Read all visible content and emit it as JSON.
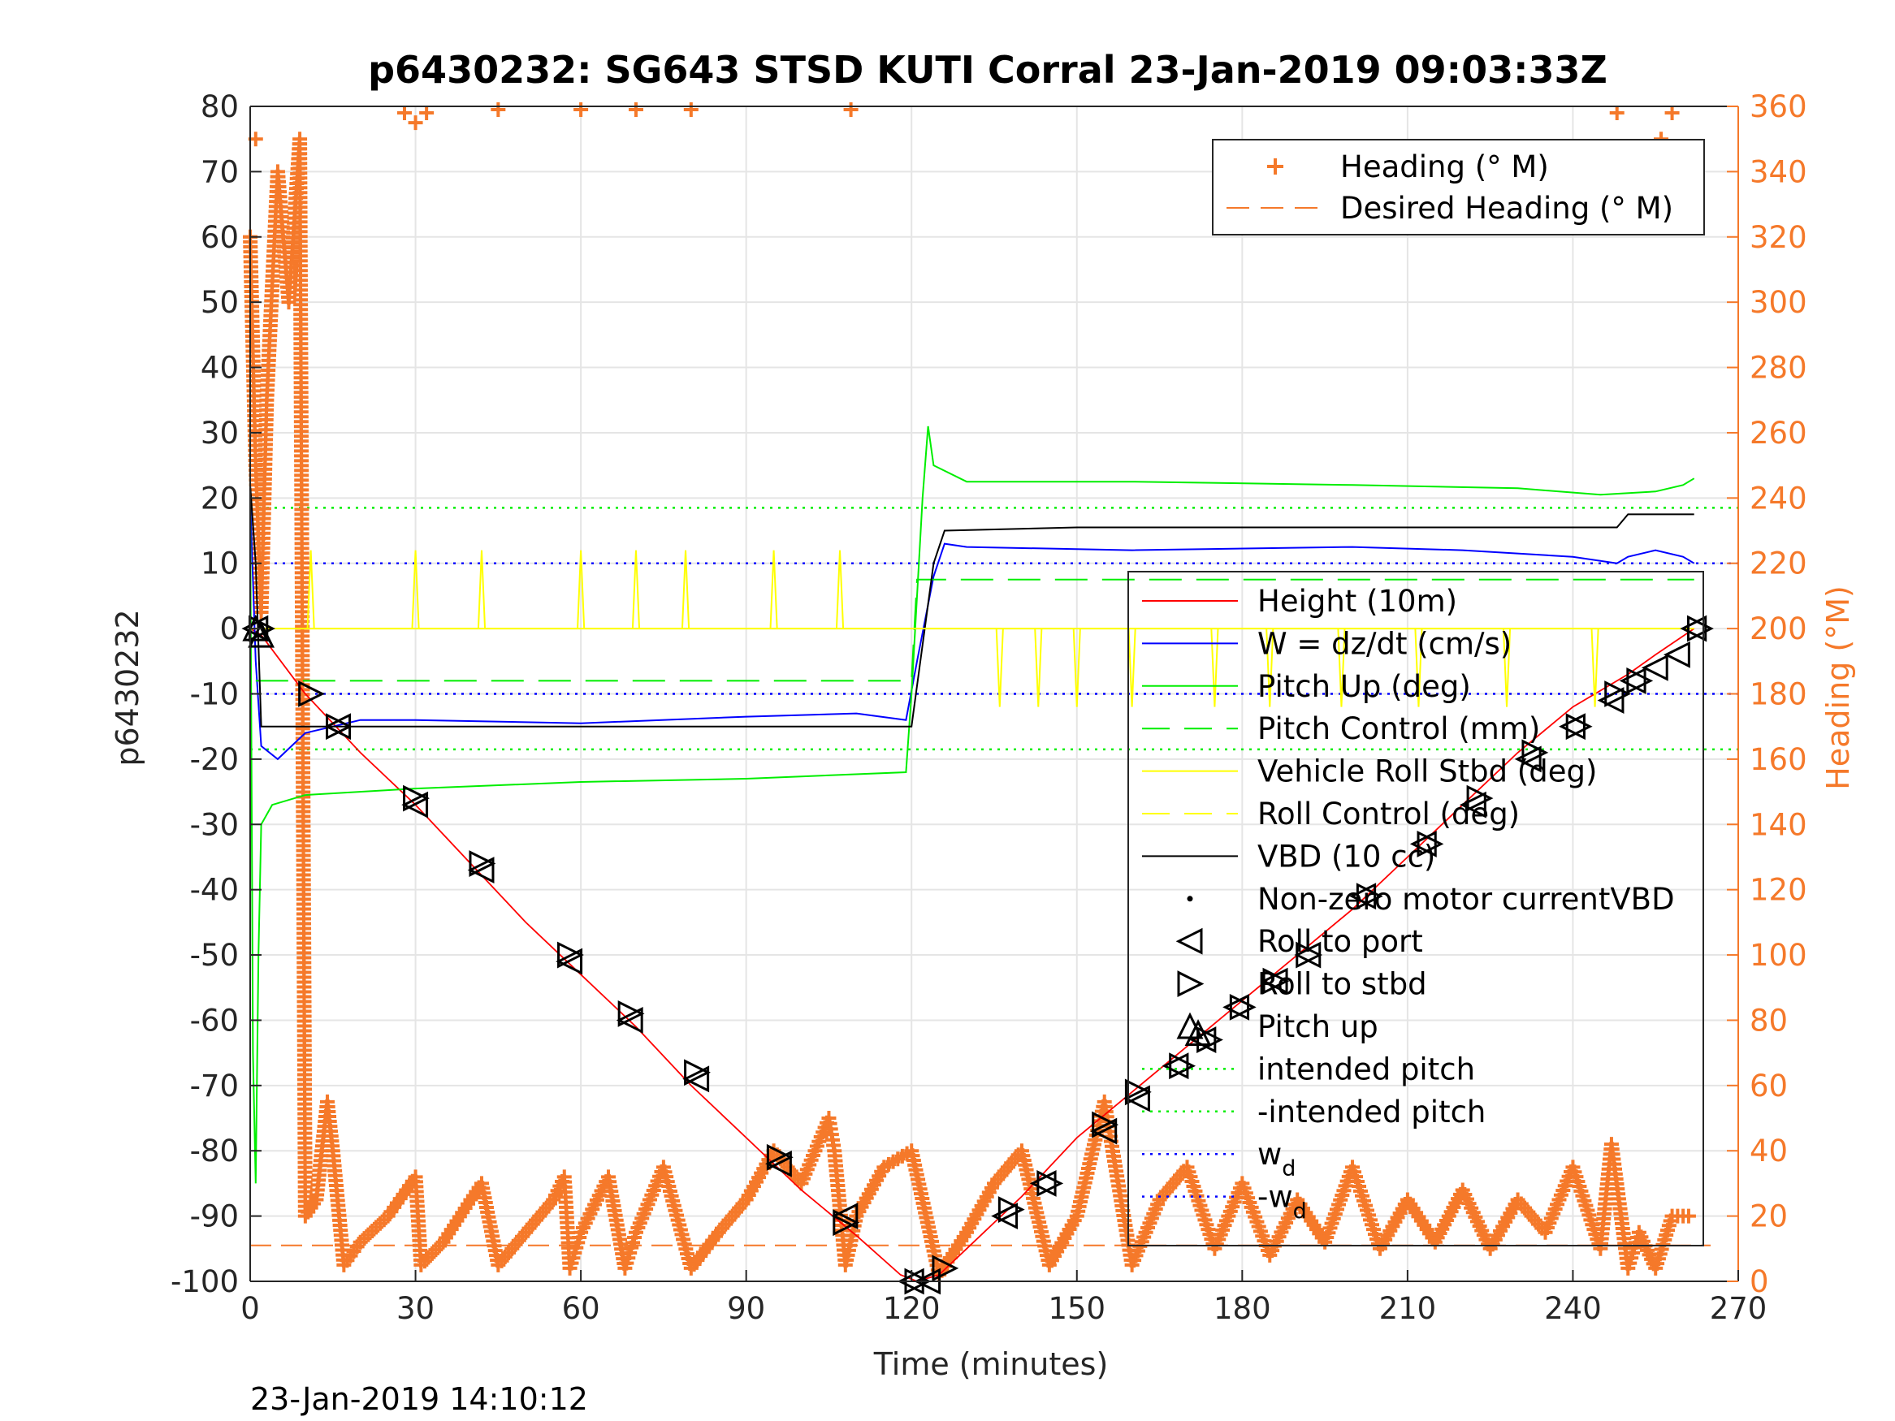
{
  "colors": {
    "height": "#ff0000",
    "w": "#0000ff",
    "pitch": "#00ee00",
    "roll": "#ffff00",
    "vbd": "#000000",
    "heading": "#f5792a",
    "grid": "#e5e5e5",
    "axis": "#262626"
  },
  "chart_data": {
    "type": "line",
    "title": "p6430232: SG643 STSD KUTI Corral 23-Jan-2019 09:03:33Z",
    "xlabel": "Time (minutes)",
    "ylabel_left": "p6430232",
    "ylabel_right": "Heading (°M)",
    "footer": "23-Jan-2019 14:10:12",
    "xlim": [
      0,
      270
    ],
    "ylim_left": [
      -100,
      80
    ],
    "ylim_right": [
      0,
      360
    ],
    "xticks": [
      0,
      30,
      60,
      90,
      120,
      150,
      180,
      210,
      240,
      270
    ],
    "yticks_left": [
      -100,
      -90,
      -80,
      -70,
      -60,
      -50,
      -40,
      -30,
      -20,
      -10,
      0,
      10,
      20,
      30,
      40,
      50,
      60,
      70,
      80
    ],
    "yticks_right": [
      0,
      20,
      40,
      60,
      80,
      100,
      120,
      140,
      160,
      180,
      200,
      220,
      240,
      260,
      280,
      300,
      320,
      340,
      360
    ],
    "grid": true,
    "legend_heading": [
      {
        "label": "Heading (° M)",
        "style": "plus",
        "color": "#f5792a"
      },
      {
        "label": "Desired Heading (° M)",
        "style": "dash",
        "color": "#f5792a"
      }
    ],
    "legend_main": [
      {
        "label": "Height (10m)",
        "style": "solid",
        "color": "#ff0000"
      },
      {
        "label": "W = dz/dt (cm/s)",
        "style": "solid",
        "color": "#0000ff"
      },
      {
        "label": "Pitch Up (deg)",
        "style": "solid",
        "color": "#00ee00"
      },
      {
        "label": "Pitch Control (mm)",
        "style": "dash",
        "color": "#00ee00"
      },
      {
        "label": "Vehicle Roll Stbd (deg)",
        "style": "solid",
        "color": "#ffff00"
      },
      {
        "label": "Roll Control (deg)",
        "style": "dash",
        "color": "#ffff00"
      },
      {
        "label": "VBD (10 cc)",
        "style": "solid",
        "color": "#000000"
      },
      {
        "label": "Non-zero motor currentVBD",
        "style": "dot",
        "color": "#000000"
      },
      {
        "label": "Roll to port",
        "style": "tri-left",
        "color": "#000000"
      },
      {
        "label": "Roll to stbd",
        "style": "tri-right",
        "color": "#000000"
      },
      {
        "label": "Pitch up",
        "style": "tri-up",
        "color": "#000000"
      },
      {
        "label": "intended pitch",
        "style": "dotted",
        "color": "#00ee00"
      },
      {
        "label": "-intended pitch",
        "style": "dotted",
        "color": "#00ee00"
      },
      {
        "label": "w",
        "sub": "d",
        "style": "dotted",
        "color": "#0000ff"
      },
      {
        "label": "-w",
        "sub": "d",
        "style": "dotted",
        "color": "#0000ff"
      }
    ],
    "reference_lines": {
      "intended_pitch": 18.5,
      "neg_intended_pitch": -18.5,
      "w_d": 10,
      "neg_w_d": -10,
      "desired_heading": 11
    },
    "series": [
      {
        "name": "Height (10m)",
        "axis": "left",
        "x": [
          0,
          2,
          10,
          20,
          30,
          40,
          50,
          60,
          70,
          80,
          90,
          100,
          110,
          118,
          121,
          125,
          130,
          140,
          150,
          160,
          170,
          180,
          190,
          200,
          210,
          220,
          230,
          240,
          250,
          255,
          262
        ],
        "y": [
          0,
          -1,
          -10,
          -19,
          -27,
          -36,
          -45,
          -53,
          -61,
          -70,
          -78,
          -86,
          -93,
          -99,
          -100,
          -99,
          -95,
          -87,
          -78,
          -71,
          -64,
          -57,
          -50,
          -43,
          -35,
          -27,
          -19,
          -12,
          -7,
          -4,
          0
        ]
      },
      {
        "name": "W = dz/dt (cm/s)",
        "axis": "left",
        "x": [
          0,
          1,
          2,
          5,
          10,
          20,
          30,
          60,
          90,
          110,
          119,
          121,
          124,
          126,
          130,
          160,
          200,
          220,
          240,
          248,
          250,
          255,
          260,
          262
        ],
        "y": [
          20,
          -5,
          -18,
          -20,
          -16,
          -14,
          -14,
          -14.5,
          -13.5,
          -13,
          -14,
          -5,
          8,
          13,
          12.5,
          12,
          12.5,
          12,
          11,
          10,
          11,
          12,
          11,
          10
        ]
      },
      {
        "name": "Pitch Up (deg)",
        "axis": "left",
        "x": [
          0,
          0.5,
          1,
          1.5,
          2,
          4,
          10,
          30,
          60,
          90,
          119,
          120,
          121,
          122,
          123,
          124,
          130,
          160,
          200,
          230,
          245,
          255,
          260,
          262
        ],
        "y": [
          20,
          -65,
          -85,
          -50,
          -30,
          -27,
          -25.5,
          -24.5,
          -23.5,
          -23,
          -22,
          -10,
          5,
          20,
          31,
          25,
          22.5,
          22.5,
          22,
          21.5,
          20.5,
          21,
          22,
          23
        ]
      },
      {
        "name": "Pitch Control (mm)",
        "axis": "left",
        "x": [
          1,
          120,
          121,
          262
        ],
        "y": [
          -8,
          -8,
          7.5,
          7.5
        ]
      },
      {
        "name": "VBD (10 cc)",
        "axis": "left",
        "x": [
          0,
          1,
          2,
          120,
          124,
          126,
          150,
          248,
          250,
          262
        ],
        "y": [
          22,
          10,
          -15,
          -15,
          10,
          15,
          15.5,
          15.5,
          17.5,
          17.5
        ]
      },
      {
        "name": "Vehicle Roll Stbd (deg)",
        "axis": "left",
        "x": [
          0,
          120,
          121,
          262
        ],
        "y": [
          0,
          0,
          0,
          0
        ]
      },
      {
        "name": "Roll Control (deg)",
        "axis": "left",
        "x": [],
        "y": []
      }
    ],
    "heading_series": {
      "name": "Heading (° M)",
      "axis": "right",
      "x": [
        0,
        1,
        2,
        3,
        5,
        7,
        9,
        10,
        12,
        14,
        15,
        17,
        20,
        25,
        30,
        31,
        35,
        40,
        42,
        45,
        50,
        55,
        57,
        58,
        60,
        65,
        68,
        70,
        75,
        80,
        85,
        90,
        95,
        100,
        105,
        106,
        108,
        110,
        115,
        120,
        125,
        130,
        135,
        140,
        145,
        150,
        155,
        160,
        165,
        170,
        175,
        180,
        185,
        190,
        195,
        200,
        205,
        210,
        215,
        220,
        225,
        230,
        235,
        240,
        245,
        247,
        250,
        252,
        255,
        258,
        262
      ],
      "y": [
        320,
        250,
        205,
        270,
        340,
        300,
        350,
        20,
        25,
        55,
        40,
        5,
        12,
        20,
        32,
        5,
        12,
        25,
        30,
        5,
        15,
        25,
        32,
        4,
        15,
        32,
        4,
        15,
        35,
        4,
        15,
        25,
        40,
        30,
        50,
        40,
        5,
        20,
        35,
        40,
        2,
        15,
        30,
        40,
        5,
        20,
        55,
        5,
        25,
        35,
        10,
        30,
        8,
        25,
        12,
        35,
        10,
        25,
        12,
        28,
        10,
        25,
        15,
        35,
        10,
        42,
        4,
        15,
        4,
        20,
        20
      ]
    },
    "heading_top_points": [
      [
        0,
        320
      ],
      [
        1,
        350
      ],
      [
        28,
        358
      ],
      [
        30,
        355
      ],
      [
        32,
        358
      ],
      [
        45,
        359
      ],
      [
        60,
        359
      ],
      [
        70,
        359
      ],
      [
        80,
        359
      ],
      [
        109,
        359
      ],
      [
        248,
        358
      ],
      [
        252,
        345
      ],
      [
        256,
        350
      ],
      [
        258,
        358
      ]
    ],
    "roll_to_port": [
      [
        1,
        0
      ],
      [
        16,
        -15
      ],
      [
        30,
        -27
      ],
      [
        42,
        -37
      ],
      [
        58,
        -51
      ],
      [
        69,
        -60
      ],
      [
        81,
        -69
      ],
      [
        96,
        -82
      ],
      [
        108,
        -90
      ],
      [
        120,
        -100
      ],
      [
        123,
        -100
      ],
      [
        137,
        -90
      ],
      [
        144,
        -85
      ],
      [
        155,
        -77
      ],
      [
        161,
        -72
      ],
      [
        168,
        -67
      ],
      [
        173,
        -63
      ],
      [
        179,
        -58
      ],
      [
        186,
        -54
      ],
      [
        192,
        -50
      ],
      [
        202,
        -41
      ],
      [
        213,
        -33
      ],
      [
        222,
        -27
      ],
      [
        232,
        -20
      ],
      [
        240,
        -15
      ],
      [
        247,
        -11
      ],
      [
        251,
        -8
      ],
      [
        255,
        -6
      ],
      [
        259,
        -4
      ],
      [
        262,
        0
      ]
    ],
    "roll_to_stbd": [
      [
        2,
        0
      ],
      [
        11,
        -10
      ],
      [
        16,
        -15
      ],
      [
        30,
        -26
      ],
      [
        42,
        -36
      ],
      [
        58,
        -50
      ],
      [
        69,
        -59
      ],
      [
        81,
        -68
      ],
      [
        96,
        -81
      ],
      [
        108,
        -91
      ],
      [
        121,
        -100
      ],
      [
        126,
        -98
      ],
      [
        138,
        -89
      ],
      [
        145,
        -85
      ],
      [
        155,
        -76
      ],
      [
        161,
        -71
      ],
      [
        169,
        -67
      ],
      [
        174,
        -63
      ],
      [
        180,
        -58
      ],
      [
        186,
        -54
      ],
      [
        192,
        -50
      ],
      [
        203,
        -41
      ],
      [
        214,
        -33
      ],
      [
        223,
        -26
      ],
      [
        233,
        -19
      ],
      [
        241,
        -15
      ],
      [
        248,
        -10
      ],
      [
        252,
        -8
      ],
      [
        263,
        0
      ]
    ],
    "pitch_up": [
      [
        1,
        0
      ],
      [
        2,
        -1
      ],
      [
        172,
        -62
      ]
    ]
  }
}
